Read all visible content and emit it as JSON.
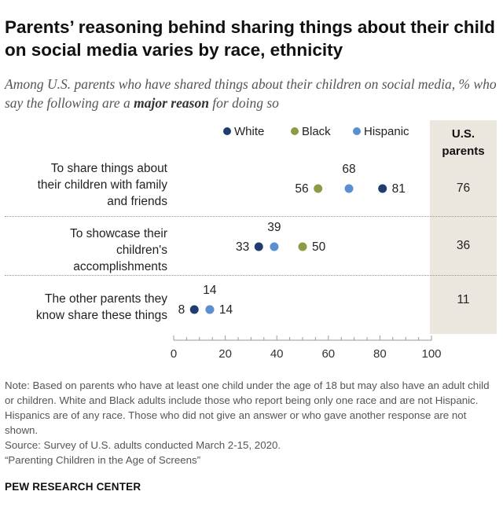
{
  "header": {
    "title": "Parents’ reasoning behind sharing things about their child on social media varies by race, ethnicity",
    "subtitle_pre": "Among U.S. parents who have shared things about their children on social media, % who say the following are a ",
    "subtitle_em": "major reason",
    "subtitle_post": " for doing so"
  },
  "legend": [
    {
      "name": "White",
      "color": "#1f3d6e"
    },
    {
      "name": "Black",
      "color": "#8e9a45"
    },
    {
      "name": "Hispanic",
      "color": "#5b8fd4"
    }
  ],
  "us_column": {
    "header_line1": "U.S.",
    "header_line2": "parents"
  },
  "rows": [
    {
      "label_lines": [
        "To share things about",
        "their children with family",
        "and friends"
      ],
      "us_value": "76"
    },
    {
      "label_lines": [
        "To showcase their",
        "children's",
        "accomplishments"
      ],
      "us_value": "36"
    },
    {
      "label_lines": [
        "The other parents they",
        "know share these things"
      ],
      "us_value": "11"
    }
  ],
  "chart_data": {
    "type": "scatter",
    "title": "Parents’ reasoning behind sharing things about their child on social media varies by race, ethnicity",
    "categories": [
      "To share things about their children with family and friends",
      "To showcase their children's accomplishments",
      "The other parents they know share these things"
    ],
    "series": [
      {
        "name": "White",
        "values": [
          81,
          33,
          8
        ],
        "color": "#1f3d6e"
      },
      {
        "name": "Black",
        "values": [
          56,
          50,
          14
        ],
        "color": "#8e9a45"
      },
      {
        "name": "Hispanic",
        "values": [
          68,
          39,
          14
        ],
        "color": "#5b8fd4"
      }
    ],
    "us_parents": [
      76,
      36,
      11
    ],
    "xlim": [
      0,
      100
    ],
    "xticks": [
      0,
      20,
      40,
      60,
      80,
      100
    ],
    "xtick_labels": [
      "0",
      "20",
      "40",
      "60",
      "80",
      "100"
    ],
    "xlabel": "",
    "ylabel": "",
    "legend_position": "top"
  },
  "notes": {
    "note": "Note: Based on parents who have at least one child under the age of 18 but may also have an adult child or children. White and Black adults include those who report being only one race and are not Hispanic. Hispanics are of any race. Those who did not give an answer or who gave another response are not shown.",
    "source": "Source: Survey of U.S. adults conducted March 2-15, 2020.",
    "report": "“Parenting Children in the Age of Screens”"
  },
  "footer": {
    "brand": "PEW RESEARCH CENTER"
  }
}
